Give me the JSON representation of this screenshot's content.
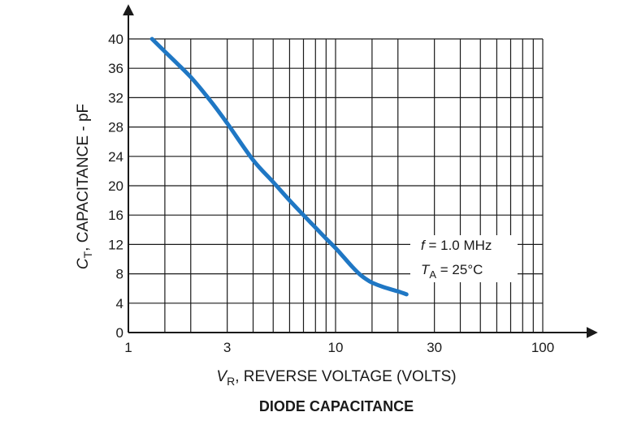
{
  "chart_data": {
    "type": "line",
    "title": "DIODE CAPACITANCE",
    "xlabel": {
      "symbol": "V",
      "subscript": "R",
      "text": ", REVERSE VOLTAGE (VOLTS)"
    },
    "ylabel": {
      "symbol": "C",
      "subscript": "T",
      "text": ", CAPACITANCE - pF"
    },
    "x_scale": "log",
    "xlim": [
      1,
      100
    ],
    "ylim": [
      0,
      40
    ],
    "x_ticks": [
      {
        "value": 1,
        "label": "1"
      },
      {
        "value": 3,
        "label": "3"
      },
      {
        "value": 10,
        "label": "10"
      },
      {
        "value": 30,
        "label": "30"
      },
      {
        "value": 100,
        "label": "100"
      }
    ],
    "y_ticks": [
      {
        "value": 0,
        "label": "0"
      },
      {
        "value": 4,
        "label": "4"
      },
      {
        "value": 8,
        "label": "8"
      },
      {
        "value": 12,
        "label": "12"
      },
      {
        "value": 16,
        "label": "16"
      },
      {
        "value": 20,
        "label": "20"
      },
      {
        "value": 24,
        "label": "24"
      },
      {
        "value": 28,
        "label": "28"
      },
      {
        "value": 32,
        "label": "32"
      },
      {
        "value": 36,
        "label": "36"
      },
      {
        "value": 40,
        "label": "40"
      }
    ],
    "grid": true,
    "x_gridlines": [
      1.5,
      2,
      3,
      4,
      5,
      6,
      7,
      8,
      9,
      10,
      15,
      20,
      30,
      40,
      50,
      60,
      70,
      80,
      90,
      100
    ],
    "series": [
      {
        "color": "#1f77c4",
        "x": [
          1.3,
          1.6,
          2.0,
          2.5,
          3.0,
          4.0,
          5.0,
          6.0,
          7.0,
          8.0,
          9.0,
          10.0,
          11.0,
          12.0,
          13.0,
          14.0,
          15.0,
          17.0,
          20.0,
          22.0
        ],
        "y": [
          40.0,
          37.5,
          34.8,
          31.5,
          28.5,
          23.5,
          20.5,
          18.0,
          16.0,
          14.3,
          12.8,
          11.5,
          10.2,
          9.0,
          8.0,
          7.3,
          6.8,
          6.2,
          5.6,
          5.2
        ]
      }
    ],
    "annotations": [
      {
        "symbol": "f",
        "subscript": "",
        "text": " = 1.0 MHz"
      },
      {
        "symbol": "T",
        "subscript": "A",
        "text": " = 25°C"
      }
    ]
  }
}
